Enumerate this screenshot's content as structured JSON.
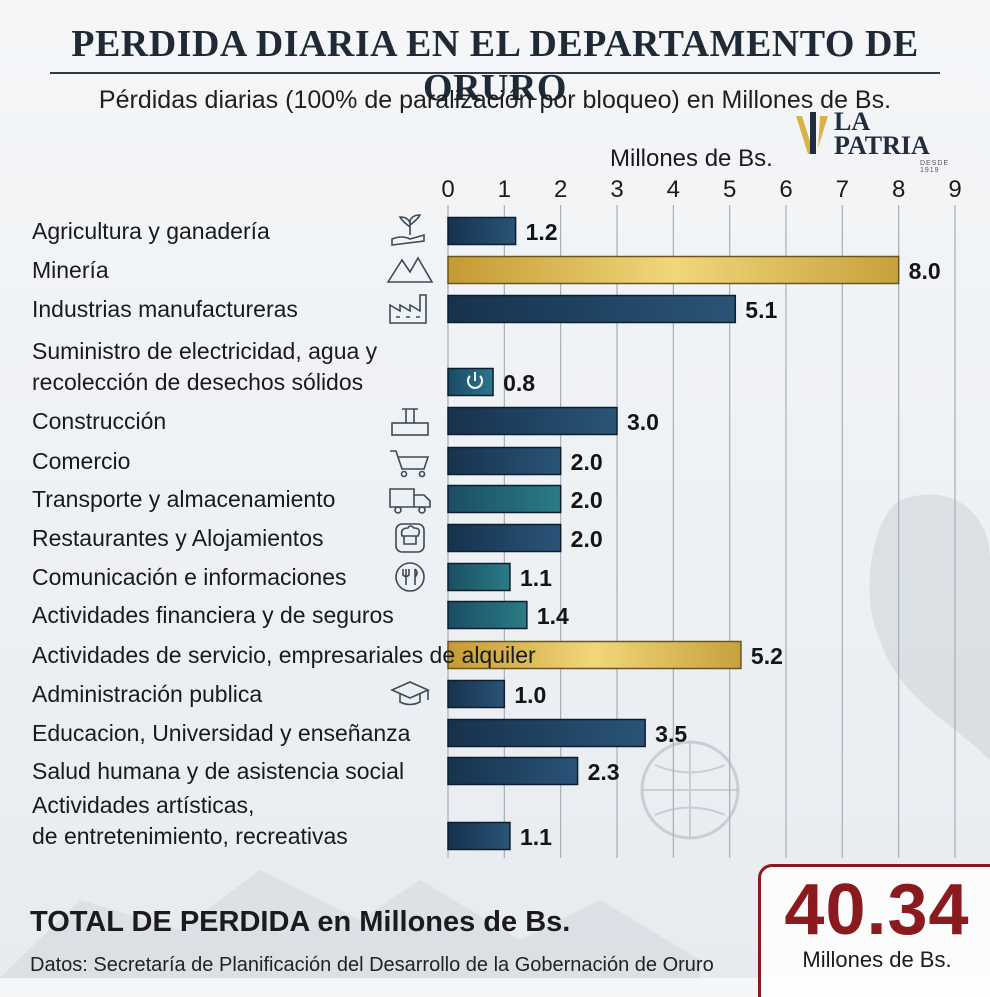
{
  "header": {
    "title": "PERDIDA DIARIA EN EL DEPARTAMENTO DE ORURO",
    "subtitle": "Pérdidas diarias (100% de paralización por bloqueo) en Millones de Bs."
  },
  "logo": {
    "line1": "LA",
    "line2": "PATRIA",
    "tagline": "DESDE 1919"
  },
  "chart_data": {
    "type": "bar",
    "orientation": "horizontal",
    "xlabel": "Millones de Bs.",
    "xlim": [
      0,
      9
    ],
    "ticks": [
      "0",
      "1",
      "2",
      "3",
      "4",
      "5",
      "6",
      "7",
      "8",
      "9"
    ],
    "grid": true,
    "categories": [
      [
        "Agricultura y ganadería"
      ],
      [
        "Minería"
      ],
      [
        "Industrias manufactureras"
      ],
      [
        "Suministro de electricidad, agua y",
        "recolección de desechos sólidos"
      ],
      [
        "Construcción"
      ],
      [
        "Comercio"
      ],
      [
        "Transporte y almacenamiento"
      ],
      [
        "Restaurantes y Alojamientos"
      ],
      [
        "Comunicación e informaciones"
      ],
      [
        "Actividades financiera y de seguros"
      ],
      [
        "Actividades de servicio, empresariales de alquiler"
      ],
      [
        "Administración publica"
      ],
      [
        "Educacion, Universidad y enseñanza"
      ],
      [
        "Salud humana y de asistencia social"
      ],
      [
        "Actividades artísticas,",
        "de entretenimiento, recreativas"
      ]
    ],
    "values": [
      1.2,
      8.0,
      5.1,
      0.8,
      3.0,
      2.0,
      2.0,
      2.0,
      1.1,
      1.4,
      5.2,
      1.0,
      3.5,
      2.3,
      1.1
    ],
    "value_labels": [
      "1.2",
      "8.0",
      "5.1",
      "0.8",
      "3.0",
      "2.0",
      "2.0",
      "2.0",
      "1.1",
      "1.4",
      "5.2",
      "1.0",
      "3.5",
      "2.3",
      "1.1"
    ],
    "highlighted": [
      1,
      10
    ],
    "icons": [
      "plant-hand-icon",
      "mountain-icon",
      "factory-icon",
      "power-icon",
      "construction-icon",
      "cart-icon",
      "truck-icon",
      "chef-icon",
      "dining-icon",
      "",
      "",
      "graduation-cap-icon",
      "",
      "",
      ""
    ],
    "colors": {
      "bar": "#1f3d5c",
      "bar_teal": "#236a78",
      "highlight": "#d9b34a",
      "grid": "#9aa3ad"
    }
  },
  "totals": {
    "label_bold": "TOTAL DE PERDIDA",
    "label_rest": " en Millones de Bs.",
    "value": "40.34",
    "unit": "Millones de Bs."
  },
  "source": "Datos: Secretaría de Planificación del Desarrollo de la Gobernación de Oruro",
  "colors": {
    "title": "#1f2a36",
    "accent_red": "#8a1a1d",
    "gold": "#d9b34a"
  }
}
